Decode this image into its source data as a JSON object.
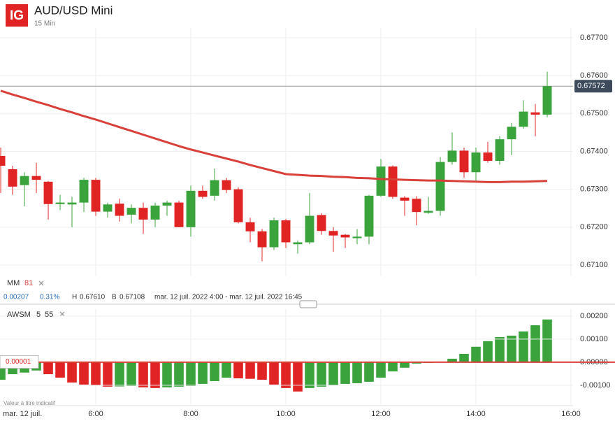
{
  "logo": "IG",
  "title": "AUD/USD Mini",
  "interval": "15 Min",
  "chart_data": [
    {
      "type": "candlestick",
      "x": [
        4,
        4.25,
        4.5,
        4.75,
        5,
        5.25,
        5.5,
        5.75,
        6,
        6.25,
        6.5,
        6.75,
        7,
        7.25,
        7.5,
        7.75,
        8,
        8.25,
        8.5,
        8.75,
        9,
        9.25,
        9.5,
        9.75,
        10,
        10.25,
        10.5,
        10.75,
        11,
        11.25,
        11.5,
        11.75,
        12,
        12.25,
        12.5,
        12.75,
        13,
        13.25,
        13.5,
        13.75,
        14,
        14.25,
        14.5,
        14.75,
        15,
        15.25,
        15.5
      ],
      "open": [
        0.67388,
        0.67353,
        0.67311,
        0.67335,
        0.6732,
        0.67261,
        0.6726,
        0.67265,
        0.67325,
        0.67241,
        0.67262,
        0.67233,
        0.67251,
        0.6722,
        0.67257,
        0.67265,
        0.672,
        0.67296,
        0.67283,
        0.67324,
        0.673,
        0.67213,
        0.67189,
        0.67147,
        0.67218,
        0.67155,
        0.6716,
        0.67232,
        0.6719,
        0.6718,
        0.67171,
        0.67175,
        0.67283,
        0.6736,
        0.67278,
        0.67275,
        0.67238,
        0.67243,
        0.67372,
        0.67402,
        0.67345,
        0.67397,
        0.67375,
        0.67432,
        0.67465,
        0.67503,
        0.67497
      ],
      "high": [
        0.6741,
        0.67362,
        0.67345,
        0.6737,
        0.67322,
        0.67285,
        0.6728,
        0.6733,
        0.6733,
        0.67265,
        0.67275,
        0.6726,
        0.67265,
        0.67265,
        0.6727,
        0.6727,
        0.6731,
        0.6731,
        0.67355,
        0.6733,
        0.67305,
        0.67225,
        0.67195,
        0.67225,
        0.67222,
        0.67165,
        0.6729,
        0.67237,
        0.672,
        0.67182,
        0.67195,
        0.67285,
        0.6738,
        0.67363,
        0.67282,
        0.67282,
        0.6728,
        0.67385,
        0.6745,
        0.6741,
        0.6741,
        0.67425,
        0.6744,
        0.67475,
        0.67535,
        0.67525,
        0.6761
      ],
      "low": [
        0.6729,
        0.67285,
        0.67255,
        0.6729,
        0.6722,
        0.67245,
        0.672,
        0.6724,
        0.6723,
        0.67225,
        0.67215,
        0.6721,
        0.67182,
        0.672,
        0.6723,
        0.672,
        0.67175,
        0.67275,
        0.6727,
        0.6729,
        0.6721,
        0.6716,
        0.6711,
        0.6714,
        0.67145,
        0.6713,
        0.67155,
        0.6718,
        0.67135,
        0.67145,
        0.67155,
        0.67155,
        0.6728,
        0.67275,
        0.6723,
        0.67205,
        0.67235,
        0.6723,
        0.67365,
        0.6733,
        0.6732,
        0.6737,
        0.67365,
        0.6739,
        0.6746,
        0.6744,
        0.6749
      ],
      "close": [
        0.67362,
        0.67307,
        0.67335,
        0.67325,
        0.67261,
        0.67265,
        0.67265,
        0.67325,
        0.67241,
        0.6726,
        0.6723,
        0.67251,
        0.6722,
        0.67257,
        0.67265,
        0.672,
        0.67296,
        0.6728,
        0.67324,
        0.67298,
        0.67213,
        0.67189,
        0.67147,
        0.67218,
        0.6716,
        0.6716,
        0.6723,
        0.6719,
        0.67178,
        0.67173,
        0.67175,
        0.67283,
        0.6736,
        0.6728,
        0.6727,
        0.6724,
        0.67243,
        0.67372,
        0.67402,
        0.67345,
        0.67397,
        0.67375,
        0.67432,
        0.67465,
        0.67505,
        0.67497,
        0.67572
      ],
      "up_color": "#3aa33c",
      "down_color": "#e02424",
      "series": [
        {
          "name": "MM",
          "period": 81,
          "color": "#d9403a",
          "values": [
            0.6756,
            0.6755,
            0.67541,
            0.67531,
            0.67522,
            0.67512,
            0.67503,
            0.67493,
            0.67484,
            0.67474,
            0.67464,
            0.67454,
            0.67444,
            0.67434,
            0.67424,
            0.67414,
            0.67405,
            0.67397,
            0.67389,
            0.67381,
            0.67373,
            0.67364,
            0.67356,
            0.67348,
            0.6734,
            0.67338,
            0.67336,
            0.67335,
            0.67333,
            0.67332,
            0.6733,
            0.67329,
            0.67327,
            0.67326,
            0.67325,
            0.67324,
            0.67323,
            0.67323,
            0.67322,
            0.67321,
            0.6732,
            0.67319,
            0.67319,
            0.6732,
            0.6732,
            0.67321,
            0.67322
          ]
        }
      ],
      "last_price": {
        "value": 0.67572,
        "label": "0.67572"
      },
      "stats": {
        "change": "0.00207",
        "change_pct": "0.31%",
        "high_label": "H",
        "high": "0.67610",
        "low_label": "B",
        "low": "0.67108",
        "range": "mar. 12 juil. 2022 4:00 - mar. 12 juil. 2022 16:45"
      },
      "xlim": [
        3.985,
        16.044
      ],
      "ylim": [
        0.677995,
        0.670705
      ],
      "yticks": [
        {
          "value": 0.677,
          "label": "0.67700"
        },
        {
          "value": 0.676,
          "label": "0.67600"
        },
        {
          "value": 0.675,
          "label": "0.67500"
        },
        {
          "value": 0.674,
          "label": "0.67400"
        },
        {
          "value": 0.673,
          "label": "0.67300"
        },
        {
          "value": 0.672,
          "label": "0.67200"
        },
        {
          "value": 0.671,
          "label": "0.67100"
        }
      ],
      "grid": true
    },
    {
      "type": "bar",
      "name": "AWSM",
      "fast": 5,
      "slow": 55,
      "values": [
        -0.00076,
        -0.00052,
        -0.00045,
        -0.00036,
        -0.00052,
        -0.00067,
        -0.00088,
        -0.00097,
        -0.001,
        -0.00106,
        -0.00105,
        -0.00103,
        -0.00109,
        -0.00112,
        -0.00109,
        -0.00106,
        -0.00103,
        -0.00094,
        -0.00082,
        -0.00067,
        -0.0007,
        -0.00072,
        -0.00076,
        -0.00097,
        -0.00112,
        -0.00127,
        -0.00112,
        -0.00106,
        -0.001,
        -0.00094,
        -0.00091,
        -0.00085,
        -0.00067,
        -0.0004,
        -0.00024,
        -6e-05,
        -1e-05,
        2e-05,
        0.00015,
        0.00036,
        0.00067,
        0.00091,
        0.00109,
        0.00115,
        0.00133,
        0.0016,
        0.00185
      ],
      "up_color": "#3aa33c",
      "down_color": "#e02424",
      "zero_color": "#d9403a",
      "marker": {
        "value": 1e-05,
        "label": "0.00001"
      },
      "ylim": [
        0.00236,
        -0.00173
      ],
      "yticks": [
        {
          "value": 0.002,
          "label": "0.00200"
        },
        {
          "value": 0.001,
          "label": "0.00100"
        },
        {
          "value": 0,
          "label": "0.00000"
        },
        {
          "value": -0.001,
          "label": "-0.00100"
        }
      ],
      "xticks": [
        {
          "value": 6,
          "label": "6:00"
        },
        {
          "value": 8,
          "label": "8:00"
        },
        {
          "value": 10,
          "label": "10:00"
        },
        {
          "value": 12,
          "label": "12:00"
        },
        {
          "value": 14,
          "label": "14:00"
        },
        {
          "value": 16,
          "label": "16:00"
        }
      ],
      "date_label": "mar. 12 juil.",
      "note": "Valeur à titre indicatif"
    }
  ]
}
